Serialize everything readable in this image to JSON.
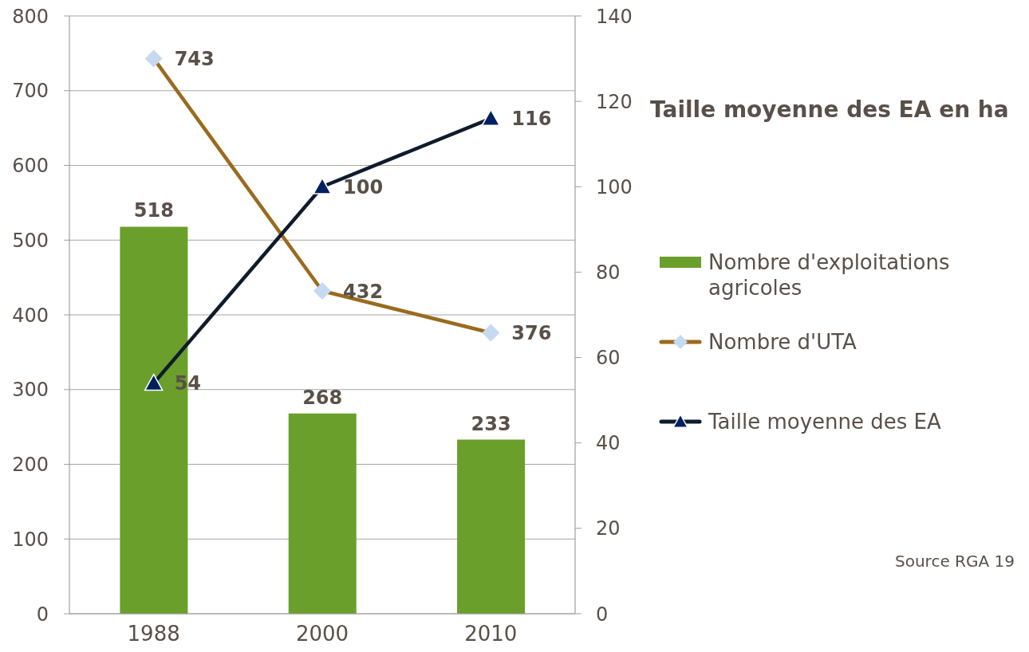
{
  "chart_data": {
    "type": "bar",
    "categories": [
      "1988",
      "2000",
      "2010"
    ],
    "series": [
      {
        "name": "Nombre d'exploitations agricoles",
        "color": "#6a9f2b",
        "values": [
          518,
          268,
          233
        ]
      },
      {
        "name": "Nombre d'UTA",
        "type": "line",
        "color": "#9a6a1e",
        "marker": "diamond",
        "colors": [
          "#c6d9f0",
          "#c6d9f0",
          "#c6d9f0"
        ],
        "values": [
          743,
          432,
          376
        ]
      },
      {
        "name": "Taille moyenne des EA",
        "type": "line",
        "color": "#0f1b2d",
        "marker": "triangle",
        "colors": [
          "#002060",
          "#002060",
          "#002060"
        ],
        "axis": "y2",
        "values": [
          54,
          100,
          116
        ]
      }
    ],
    "ylim": [
      0,
      800
    ],
    "yticks": [
      0,
      100,
      200,
      300,
      400,
      500,
      600,
      700,
      800
    ],
    "y2lim": [
      0,
      140
    ],
    "y2ticks": [
      0,
      20,
      40,
      60,
      80,
      100,
      120,
      140
    ],
    "y2label": "Taille moyenne des EA en ha",
    "annotations": [
      "Source RGA 19"
    ],
    "grid": "y",
    "legend": "right",
    "data_labels": true
  }
}
